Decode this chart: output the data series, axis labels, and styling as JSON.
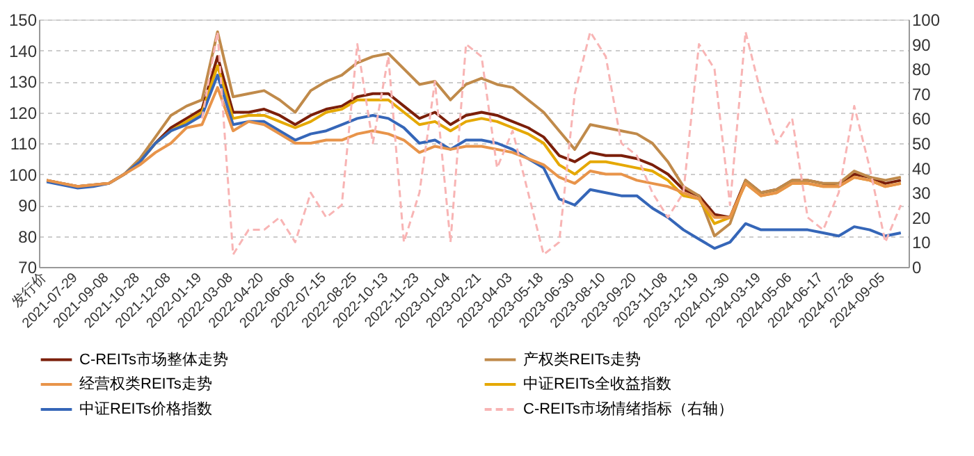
{
  "chart_data": {
    "type": "line",
    "categories": [
      "发行价",
      null,
      "2021-07-29",
      null,
      "2021-09-08",
      null,
      "2021-10-28",
      null,
      "2021-12-08",
      null,
      "2022-01-19",
      null,
      "2022-03-08",
      null,
      "2022-04-20",
      null,
      "2022-06-06",
      null,
      "2022-07-15",
      null,
      "2022-08-25",
      null,
      "2022-10-13",
      null,
      "2022-11-23",
      null,
      "2023-01-04",
      null,
      "2023-02-21",
      null,
      "2023-04-03",
      null,
      "2023-05-18",
      null,
      "2023-06-30",
      null,
      "2023-08-10",
      null,
      "2023-09-20",
      null,
      "2023-11-08",
      null,
      "2023-12-19",
      null,
      "2024-01-30",
      null,
      "2024-03-19",
      null,
      "2024-05-06",
      null,
      "2024-06-17",
      null,
      "2024-07-26",
      null,
      "2024-09-05",
      null
    ],
    "series": [
      {
        "name": "C-REITs市场整体走势",
        "color": "#7b1f0a",
        "values": [
          98,
          97,
          96,
          96.5,
          97,
          100,
          104,
          110,
          115,
          118,
          121,
          138,
          120,
          120,
          121,
          119,
          116,
          119,
          121,
          122,
          125,
          126,
          126,
          122,
          118,
          120,
          116,
          119,
          120,
          119,
          117,
          115,
          112,
          106,
          104,
          107,
          106,
          106,
          105,
          103,
          100,
          95,
          93,
          87,
          86,
          98,
          94,
          95,
          98,
          98,
          97,
          96,
          100,
          99,
          97,
          98
        ]
      },
      {
        "name": "产权类REITs走势",
        "color": "#c08a4a",
        "values": [
          98,
          97,
          96,
          96.5,
          97,
          100,
          105,
          112,
          119,
          122,
          124,
          146,
          125,
          126,
          127,
          124,
          120,
          127,
          130,
          132,
          136,
          138,
          139,
          134,
          129,
          130,
          124,
          129,
          131,
          129,
          128,
          124,
          120,
          114,
          108,
          116,
          115,
          114,
          113,
          110,
          104,
          96,
          93,
          80,
          84,
          98,
          94,
          95,
          98,
          98,
          97,
          97,
          101,
          99,
          98,
          99
        ]
      },
      {
        "name": "经营权类REITs走势",
        "color": "#e8944a",
        "values": [
          98,
          97,
          96,
          96.5,
          97,
          100,
          103,
          107,
          110,
          115,
          116,
          128,
          114,
          117,
          116,
          113,
          110,
          110,
          111,
          111,
          113,
          114,
          113,
          111,
          107,
          109,
          108,
          109,
          109,
          108,
          107,
          105,
          103,
          99,
          97,
          101,
          100,
          100,
          98,
          97,
          96,
          94,
          92,
          86,
          86,
          97,
          93,
          94,
          97,
          97,
          96,
          96,
          99,
          98,
          96,
          97
        ]
      },
      {
        "name": "中证REITs全收益指数",
        "color": "#e5a800",
        "values": [
          null,
          null,
          null,
          null,
          97,
          100,
          104,
          110,
          114,
          117,
          120,
          135,
          118,
          119,
          119,
          117,
          115,
          117,
          120,
          121,
          124,
          124,
          124,
          120,
          116,
          117,
          114,
          117,
          118,
          117,
          115,
          113,
          110,
          103,
          100,
          104,
          104,
          103,
          102,
          101,
          98,
          93,
          92,
          84,
          86,
          97,
          93,
          94,
          97,
          97,
          96,
          96,
          99,
          98,
          96,
          97
        ]
      },
      {
        "name": "中证REITs价格指数",
        "color": "#3566b8",
        "values": [
          97.5,
          96.5,
          95.5,
          96,
          97,
          100,
          104,
          110,
          114,
          116,
          119,
          132,
          116,
          117,
          117,
          114,
          111,
          113,
          114,
          116,
          118,
          119,
          118,
          115,
          110,
          111,
          108,
          111,
          111,
          110,
          108,
          105,
          102,
          92,
          90,
          95,
          94,
          93,
          93,
          89,
          86,
          82,
          79,
          76,
          78,
          84,
          82,
          82,
          82,
          82,
          81,
          80,
          83,
          82,
          80,
          81
        ]
      },
      {
        "name": "C-REITs市场情绪指标（右轴）",
        "color": "#f8b4b4",
        "axis": "y2",
        "line_style": "dashed",
        "values": [
          null,
          null,
          null,
          null,
          null,
          null,
          null,
          null,
          null,
          null,
          60,
          95,
          5,
          15,
          15,
          20,
          10,
          30,
          20,
          25,
          90,
          50,
          85,
          10,
          30,
          75,
          10,
          90,
          85,
          40,
          55,
          30,
          5,
          10,
          70,
          95,
          85,
          50,
          45,
          30,
          20,
          30,
          90,
          80,
          25,
          95,
          70,
          50,
          60,
          20,
          15,
          30,
          65,
          40,
          10,
          25
        ]
      }
    ],
    "ylim": [
      70,
      150
    ],
    "yticks": [
      70,
      80,
      90,
      100,
      110,
      120,
      130,
      140,
      150
    ],
    "y2lim": [
      0,
      100
    ],
    "y2ticks": [
      0,
      10,
      20,
      30,
      40,
      50,
      60,
      70,
      80,
      90,
      100
    ],
    "grid": "y",
    "legend": "bottom",
    "line_style": "solid"
  }
}
